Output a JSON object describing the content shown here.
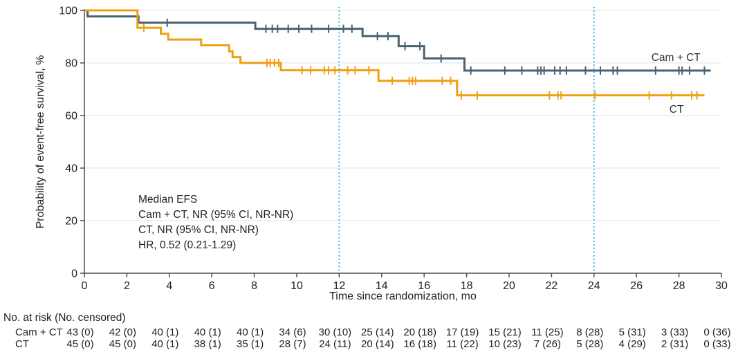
{
  "chart_data": {
    "type": "line",
    "subtype": "kaplan_meier_step",
    "title": "",
    "xlabel": "Time since randomization, mo",
    "ylabel": "Probability of event-free survival, %",
    "xlim": [
      0,
      30
    ],
    "ylim": [
      0,
      100
    ],
    "xticks": [
      0,
      2,
      4,
      6,
      8,
      10,
      12,
      14,
      16,
      18,
      20,
      22,
      24,
      26,
      28,
      30
    ],
    "yticks": [
      0,
      20,
      40,
      60,
      80,
      100
    ],
    "grid": "horizontal_light",
    "legend_position": "curve_labels_right",
    "reference_lines_x": [
      12,
      24
    ],
    "annotation_lines": [
      "Median EFS",
      "Cam + CT, NR (95% CI, NR-NR)",
      "CT, NR (95% CI, NR-NR)",
      "HR, 0.52 (0.21-1.29)"
    ],
    "colors": {
      "camct": "#486272",
      "ct": "#F09F12",
      "reference_line": "#3FB6E4",
      "grid": "#ececec",
      "axis": "#4d4d4d",
      "text": "#212121"
    },
    "series": [
      {
        "name": "Cam + CT",
        "color": "#486272",
        "end_x": 29.5,
        "steps": [
          [
            0,
            100
          ],
          [
            0.15,
            97.7
          ],
          [
            2.55,
            95.3
          ],
          [
            8.05,
            93.0
          ],
          [
            13.1,
            90.2
          ],
          [
            14.8,
            86.4
          ],
          [
            16.0,
            81.7
          ],
          [
            17.9,
            77.1
          ]
        ],
        "censors": [
          [
            3.9,
            95.3
          ],
          [
            8.55,
            93.0
          ],
          [
            8.85,
            93.0
          ],
          [
            9.1,
            93.0
          ],
          [
            9.6,
            93.0
          ],
          [
            10.1,
            93.0
          ],
          [
            10.7,
            93.0
          ],
          [
            11.5,
            93.0
          ],
          [
            12.2,
            93.0
          ],
          [
            12.6,
            93.0
          ],
          [
            13.8,
            90.2
          ],
          [
            14.3,
            90.2
          ],
          [
            15.1,
            86.4
          ],
          [
            15.8,
            86.4
          ],
          [
            16.8,
            81.7
          ],
          [
            18.2,
            77.1
          ],
          [
            19.8,
            77.1
          ],
          [
            20.6,
            77.1
          ],
          [
            21.35,
            77.1
          ],
          [
            21.5,
            77.1
          ],
          [
            21.65,
            77.1
          ],
          [
            22.15,
            77.1
          ],
          [
            22.4,
            77.1
          ],
          [
            22.7,
            77.1
          ],
          [
            23.6,
            77.1
          ],
          [
            24.3,
            77.1
          ],
          [
            24.9,
            77.1
          ],
          [
            25.1,
            77.1
          ],
          [
            26.9,
            77.1
          ],
          [
            28.0,
            77.1
          ],
          [
            28.15,
            77.1
          ],
          [
            28.5,
            77.1
          ],
          [
            29.2,
            77.1
          ]
        ],
        "label": {
          "text": "Cam + CT",
          "x_mo": 26.7,
          "y_pct": 80.8
        }
      },
      {
        "name": "CT",
        "color": "#F09F12",
        "end_x": 29.2,
        "steps": [
          [
            0,
            100
          ],
          [
            2.5,
            93.4
          ],
          [
            3.6,
            91.1
          ],
          [
            3.95,
            88.9
          ],
          [
            5.5,
            86.7
          ],
          [
            6.82,
            84.4
          ],
          [
            6.98,
            82.2
          ],
          [
            7.35,
            80.0
          ],
          [
            9.25,
            77.2
          ],
          [
            13.85,
            73.2
          ],
          [
            17.55,
            67.7
          ]
        ],
        "censors": [
          [
            2.8,
            93.4
          ],
          [
            8.6,
            80.0
          ],
          [
            8.75,
            80.0
          ],
          [
            8.95,
            80.0
          ],
          [
            9.15,
            80.0
          ],
          [
            10.25,
            77.2
          ],
          [
            10.65,
            77.2
          ],
          [
            11.3,
            77.2
          ],
          [
            11.5,
            77.2
          ],
          [
            11.8,
            77.2
          ],
          [
            12.4,
            77.2
          ],
          [
            12.75,
            77.2
          ],
          [
            13.4,
            77.2
          ],
          [
            14.5,
            73.2
          ],
          [
            15.3,
            73.2
          ],
          [
            15.45,
            73.2
          ],
          [
            15.6,
            73.2
          ],
          [
            16.85,
            73.2
          ],
          [
            17.25,
            73.2
          ],
          [
            17.75,
            67.7
          ],
          [
            18.5,
            67.7
          ],
          [
            21.9,
            67.7
          ],
          [
            22.3,
            67.7
          ],
          [
            22.45,
            67.7
          ],
          [
            24.05,
            67.7
          ],
          [
            26.6,
            67.7
          ],
          [
            27.65,
            67.7
          ],
          [
            28.6,
            67.7
          ],
          [
            28.85,
            67.7
          ]
        ],
        "label": {
          "text": "CT",
          "x_mo": 27.55,
          "y_pct": 61.0
        }
      }
    ]
  },
  "risk_table": {
    "title": "No. at risk (No. censored)",
    "time_points": [
      0,
      2,
      4,
      6,
      8,
      10,
      12,
      14,
      16,
      18,
      20,
      22,
      24,
      26,
      28,
      30
    ],
    "rows": [
      {
        "label": "Cam + CT",
        "values": [
          "43 (0)",
          "42 (0)",
          "40 (1)",
          "40 (1)",
          "40 (1)",
          "34 (6)",
          "30 (10)",
          "25 (14)",
          "20 (18)",
          "17 (19)",
          "15 (21)",
          "11 (25)",
          "8 (28)",
          "5 (31)",
          "3 (33)",
          "0 (36)"
        ]
      },
      {
        "label": "CT",
        "values": [
          "45 (0)",
          "45 (0)",
          "40 (1)",
          "38 (1)",
          "35 (1)",
          "28 (7)",
          "24 (11)",
          "20 (14)",
          "16 (18)",
          "11 (22)",
          "10 (23)",
          "7 (26)",
          "5 (28)",
          "4 (29)",
          "2 (31)",
          "0 (33)"
        ]
      }
    ]
  }
}
